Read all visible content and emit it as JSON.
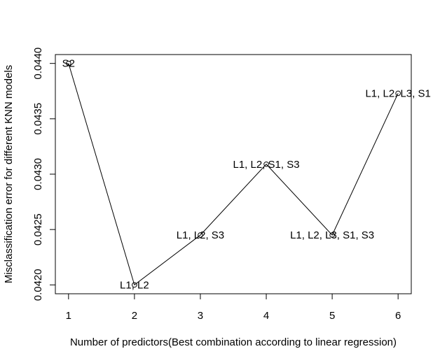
{
  "chart_data": {
    "type": "line",
    "title": "",
    "xlabel": "Number of predictors(Best combination according to linear regression)",
    "ylabel": "Misclassification error for different KNN models",
    "x": [
      1,
      2,
      3,
      4,
      5,
      6
    ],
    "y": [
      0.044,
      0.042,
      0.04245,
      0.04309,
      0.04245,
      0.04373
    ],
    "point_labels": [
      "S2",
      "L1, L2",
      "L1, L2, S3",
      "L1, L2, S1, S3",
      "L1, L2, L3, S1, S3",
      "L1, L2, L3, S1"
    ],
    "xlim": [
      0.8,
      6.2
    ],
    "ylim": [
      0.04192,
      0.04408
    ],
    "xticks": [
      1,
      2,
      3,
      4,
      5,
      6
    ],
    "xtick_labels": [
      "1",
      "2",
      "3",
      "4",
      "5",
      "6"
    ],
    "yticks": [
      0.042,
      0.0425,
      0.043,
      0.0435,
      0.044
    ],
    "ytick_labels": [
      "0.0420",
      "0.0425",
      "0.0430",
      "0.0435",
      "0.0440"
    ],
    "grid": false,
    "legend": "none",
    "colors": {
      "line": "#000000",
      "axis": "#000000",
      "background": "#ffffff"
    }
  }
}
